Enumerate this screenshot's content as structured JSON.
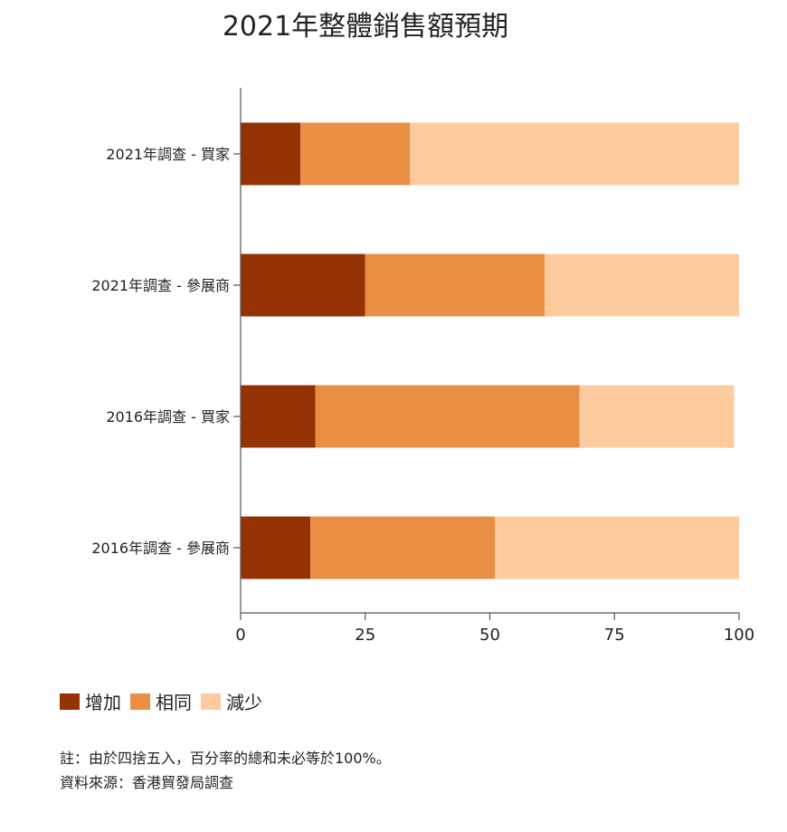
{
  "title": "2021年整體銷售額預期",
  "chart_data": {
    "type": "bar",
    "orientation": "horizontal",
    "stacked": true,
    "title": "2021年整體銷售額預期",
    "categories": [
      "2021年調查 - 買家",
      "2021年調查 - 參展商",
      "2016年調查 - 買家",
      "2016年調查 - 參展商"
    ],
    "series": [
      {
        "name": "增加",
        "color": "#953204",
        "values": [
          12,
          25,
          15,
          14
        ]
      },
      {
        "name": "相同",
        "color": "#e88f44",
        "values": [
          22,
          36,
          53,
          37
        ]
      },
      {
        "name": "減少",
        "color": "#fecb9f",
        "values": [
          66,
          39,
          31,
          49
        ]
      }
    ],
    "xlim": [
      0,
      100
    ],
    "xticks": [
      "0",
      "25",
      "50",
      "75",
      "100"
    ],
    "grid": false,
    "legend_position": "bottom-left"
  },
  "notes": {
    "line1": "註：由於四捨五入，百分率的總和未必等於100%。",
    "line2": "資料來源：香港貿發局調查"
  }
}
